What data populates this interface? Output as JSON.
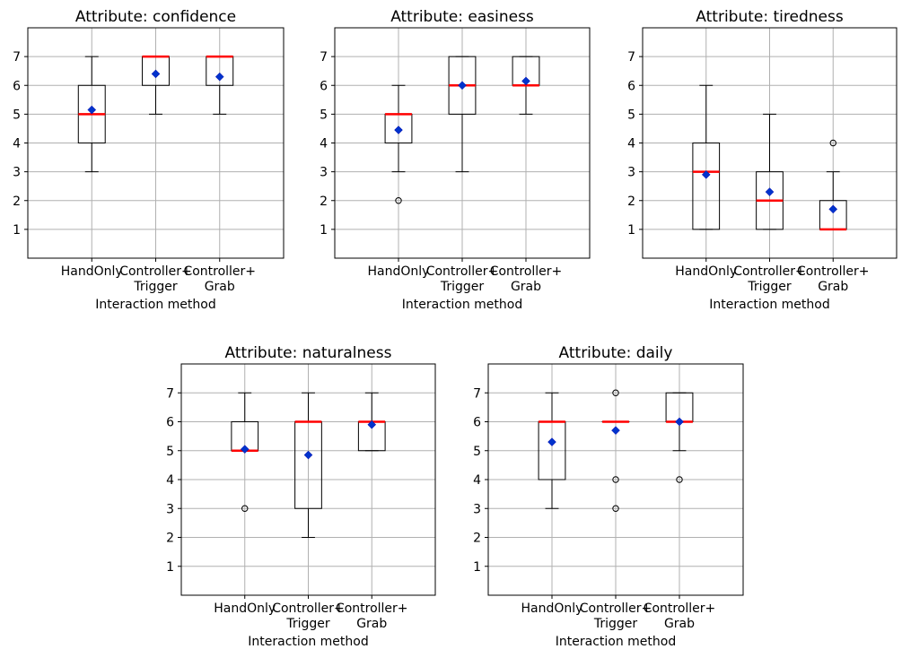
{
  "chart_data": [
    {
      "type": "boxplot",
      "title": "Attribute: confidence",
      "xlabel": "Interaction method",
      "categories": [
        "HandOnly",
        "Controller+\nTrigger",
        "Controller+\nGrab"
      ],
      "ylim": [
        0,
        8
      ],
      "yticks": [
        1,
        2,
        3,
        4,
        5,
        6,
        7
      ],
      "grid": true,
      "boxes": [
        {
          "whislo": 3,
          "q1": 4,
          "med": 5,
          "q3": 6,
          "whishi": 7,
          "mean": 5.15,
          "fliers": []
        },
        {
          "whislo": 5,
          "q1": 6,
          "med": 7,
          "q3": 7,
          "whishi": 7,
          "mean": 6.4,
          "fliers": []
        },
        {
          "whislo": 5,
          "q1": 6,
          "med": 7,
          "q3": 7,
          "whishi": 7,
          "mean": 6.3,
          "fliers": []
        }
      ]
    },
    {
      "type": "boxplot",
      "title": "Attribute: easiness",
      "xlabel": "Interaction method",
      "categories": [
        "HandOnly",
        "Controller+\nTrigger",
        "Controller+\nGrab"
      ],
      "ylim": [
        0,
        8
      ],
      "yticks": [
        1,
        2,
        3,
        4,
        5,
        6,
        7
      ],
      "grid": true,
      "boxes": [
        {
          "whislo": 3,
          "q1": 4,
          "med": 5,
          "q3": 5,
          "whishi": 6,
          "mean": 4.45,
          "fliers": [
            2
          ]
        },
        {
          "whislo": 3,
          "q1": 5,
          "med": 6,
          "q3": 7,
          "whishi": 7,
          "mean": 6.0,
          "fliers": []
        },
        {
          "whislo": 5,
          "q1": 6,
          "med": 6,
          "q3": 7,
          "whishi": 7,
          "mean": 6.15,
          "fliers": []
        }
      ]
    },
    {
      "type": "boxplot",
      "title": "Attribute: tiredness",
      "xlabel": "Interaction method",
      "categories": [
        "HandOnly",
        "Controller+\nTrigger",
        "Controller+\nGrab"
      ],
      "ylim": [
        0,
        8
      ],
      "yticks": [
        1,
        2,
        3,
        4,
        5,
        6,
        7
      ],
      "grid": true,
      "boxes": [
        {
          "whislo": 1,
          "q1": 1,
          "med": 3,
          "q3": 4,
          "whishi": 6,
          "mean": 2.9,
          "fliers": []
        },
        {
          "whislo": 1,
          "q1": 1,
          "med": 2,
          "q3": 3,
          "whishi": 5,
          "mean": 2.3,
          "fliers": []
        },
        {
          "whislo": 1,
          "q1": 1,
          "med": 1,
          "q3": 2,
          "whishi": 3,
          "mean": 1.7,
          "fliers": [
            4
          ]
        }
      ]
    },
    {
      "type": "boxplot",
      "title": "Attribute: naturalness",
      "xlabel": "Interaction method",
      "categories": [
        "HandOnly",
        "Controller+\nTrigger",
        "Controller+\nGrab"
      ],
      "ylim": [
        0,
        8
      ],
      "yticks": [
        1,
        2,
        3,
        4,
        5,
        6,
        7
      ],
      "grid": true,
      "boxes": [
        {
          "whislo": 5,
          "q1": 5,
          "med": 5,
          "q3": 6,
          "whishi": 7,
          "mean": 5.05,
          "fliers": [
            3
          ]
        },
        {
          "whislo": 2,
          "q1": 3,
          "med": 6,
          "q3": 6,
          "whishi": 7,
          "mean": 4.85,
          "fliers": []
        },
        {
          "whislo": 5,
          "q1": 5,
          "med": 6,
          "q3": 6,
          "whishi": 7,
          "mean": 5.9,
          "fliers": []
        }
      ]
    },
    {
      "type": "boxplot",
      "title": "Attribute: daily",
      "xlabel": "Interaction method",
      "categories": [
        "HandOnly",
        "Controller+\nTrigger",
        "Controller+\nGrab"
      ],
      "ylim": [
        0,
        8
      ],
      "yticks": [
        1,
        2,
        3,
        4,
        5,
        6,
        7
      ],
      "grid": true,
      "boxes": [
        {
          "whislo": 3,
          "q1": 4,
          "med": 6,
          "q3": 6,
          "whishi": 7,
          "mean": 5.3,
          "fliers": []
        },
        {
          "whislo": 6,
          "q1": 6,
          "med": 6,
          "q3": 6,
          "whishi": 6,
          "mean": 5.7,
          "fliers": [
            7,
            4,
            3
          ]
        },
        {
          "whislo": 5,
          "q1": 6,
          "med": 6,
          "q3": 7,
          "whishi": 7,
          "mean": 6.0,
          "fliers": [
            4
          ]
        }
      ]
    }
  ],
  "colors": {
    "median": "#ff0000",
    "mean_marker": "#0033cc",
    "mean_marker_edge": "#0000aa",
    "box": "#000000",
    "grid": "#b0b0b0"
  }
}
